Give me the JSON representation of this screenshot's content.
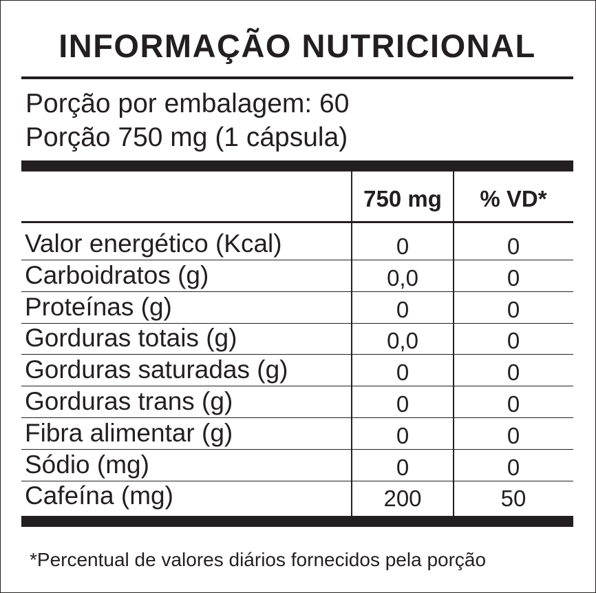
{
  "label": {
    "title": "INFORMAÇÃO NUTRICIONAL",
    "servings_per_package": "Porção por embalagem: 60",
    "serving_size": "Porção 750 mg (1 cápsula)",
    "columns": {
      "amount": "750 mg",
      "daily_value": "% VD*"
    },
    "rows": [
      {
        "name": "Valor energético (Kcal)",
        "amount": "0",
        "daily_value": "0"
      },
      {
        "name": "Carboidratos (g)",
        "amount": "0,0",
        "daily_value": "0"
      },
      {
        "name": "Proteínas (g)",
        "amount": "0",
        "daily_value": "0"
      },
      {
        "name": "Gorduras totais (g)",
        "amount": "0,0",
        "daily_value": "0"
      },
      {
        "name": "Gorduras saturadas (g)",
        "amount": "0",
        "daily_value": "0"
      },
      {
        "name": "Gorduras trans (g)",
        "amount": "0",
        "daily_value": "0"
      },
      {
        "name": "Fibra alimentar (g)",
        "amount": "0",
        "daily_value": "0"
      },
      {
        "name": "Sódio (mg)",
        "amount": "0",
        "daily_value": "0"
      },
      {
        "name": "Cafeína (mg)",
        "amount": "200",
        "daily_value": "50"
      }
    ],
    "footnote": "*Percentual de valores diários fornecidos pela porção"
  }
}
